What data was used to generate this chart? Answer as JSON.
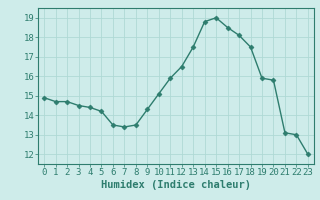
{
  "x": [
    0,
    1,
    2,
    3,
    4,
    5,
    6,
    7,
    8,
    9,
    10,
    11,
    12,
    13,
    14,
    15,
    16,
    17,
    18,
    19,
    20,
    21,
    22,
    23
  ],
  "y": [
    14.9,
    14.7,
    14.7,
    14.5,
    14.4,
    14.2,
    13.5,
    13.4,
    13.5,
    14.3,
    15.1,
    15.9,
    16.5,
    17.5,
    18.8,
    19.0,
    18.5,
    18.1,
    17.5,
    15.9,
    15.8,
    13.1,
    13.0,
    12.0
  ],
  "line_color": "#2e7d6e",
  "marker": "D",
  "marker_size": 2.5,
  "bg_color": "#ceecea",
  "grid_color": "#afd9d5",
  "xlabel": "Humidex (Indice chaleur)",
  "xlim": [
    -0.5,
    23.5
  ],
  "ylim": [
    11.5,
    19.5
  ],
  "xticks": [
    0,
    1,
    2,
    3,
    4,
    5,
    6,
    7,
    8,
    9,
    10,
    11,
    12,
    13,
    14,
    15,
    16,
    17,
    18,
    19,
    20,
    21,
    22,
    23
  ],
  "yticks": [
    12,
    13,
    14,
    15,
    16,
    17,
    18,
    19
  ],
  "axis_color": "#2e7d6e",
  "tick_color": "#2e7d6e",
  "label_fontsize": 7.5,
  "tick_fontsize": 6.5
}
